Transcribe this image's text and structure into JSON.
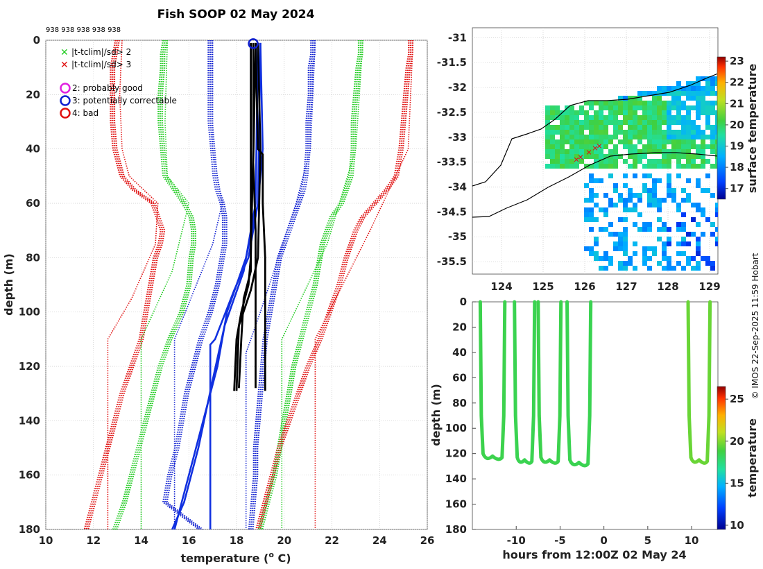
{
  "title": "Fish SOOP 02 May 2024",
  "header_ids": "938 938 938 938 938",
  "credit": "© IMOS 22-Sep-2025 11:59 Hobart",
  "colors": {
    "xlim2": "#22cc22",
    "xlim3": "#e01010",
    "good": "#e020e0",
    "correctable": "#1020d0",
    "bad": "#e01010",
    "profile": "#000000",
    "profile_blue": "#1030e0"
  },
  "chart_data": [
    {
      "type": "line",
      "name": "profile",
      "xlabel": "temperature (o C)",
      "xlabel_main": "temperature (",
      "xlabel_sup": "o",
      "xlabel_end": " C)",
      "ylabel": "depth (m)",
      "xlim": [
        10,
        26
      ],
      "ylim": [
        0,
        180
      ],
      "xticks": [
        "10",
        "12",
        "14",
        "16",
        "18",
        "20",
        "22",
        "24",
        "26"
      ],
      "yticks": [
        "0",
        "20",
        "40",
        "60",
        "80",
        "100",
        "120",
        "140",
        "160",
        "180"
      ],
      "legend": [
        {
          "marker": "x",
          "color": "#22cc22",
          "label": "|t-tclim|/sd> 2"
        },
        {
          "marker": "x",
          "color": "#e01010",
          "label": "|t-tclim|/sd> 3"
        },
        {
          "marker": "o",
          "color": "#e020e0",
          "label": "2: probably good"
        },
        {
          "marker": "o",
          "color": "#1020d0",
          "label": "3: potentially correctable"
        },
        {
          "marker": "o",
          "color": "#e01010",
          "label": "4: bad"
        }
      ],
      "depths": [
        0,
        5,
        10,
        20,
        30,
        40,
        50,
        55,
        60,
        65,
        70,
        75,
        80,
        90,
        100,
        110,
        120,
        130,
        140,
        150,
        160,
        170,
        180
      ],
      "clim_series": [
        {
          "name": "red-left",
          "color": "#e01010",
          "values": [
            13.0,
            12.9,
            12.8,
            12.8,
            12.8,
            12.9,
            13.2,
            13.7,
            14.5,
            14.7,
            14.9,
            14.8,
            14.6,
            14.4,
            14.2,
            14.0,
            13.6,
            13.2,
            12.9,
            12.6,
            12.3,
            12.0,
            11.7
          ]
        },
        {
          "name": "green-left",
          "color": "#22cc22",
          "values": [
            15.0,
            14.9,
            14.9,
            14.8,
            14.8,
            14.9,
            15.0,
            15.4,
            15.8,
            16.1,
            16.2,
            16.2,
            16.1,
            16.0,
            15.7,
            15.2,
            14.8,
            14.5,
            14.2,
            13.9,
            13.6,
            13.3,
            12.9
          ]
        },
        {
          "name": "blue-left",
          "color": "#1020d0",
          "values": [
            16.9,
            16.9,
            16.9,
            16.9,
            16.9,
            17.0,
            17.1,
            17.2,
            17.4,
            17.5,
            17.5,
            17.5,
            17.4,
            17.2,
            16.9,
            16.5,
            16.2,
            15.9,
            15.7,
            15.5,
            15.2,
            15.0,
            16.5
          ]
        },
        {
          "name": "blue-right",
          "color": "#1020d0",
          "values": [
            21.2,
            21.2,
            21.1,
            21.1,
            21.0,
            21.0,
            20.9,
            20.8,
            20.6,
            20.4,
            20.2,
            20.0,
            19.8,
            19.6,
            19.4,
            19.2,
            19.1,
            19.0,
            18.9,
            18.8,
            18.8,
            18.7,
            18.6
          ]
        },
        {
          "name": "green-right",
          "color": "#22cc22",
          "values": [
            23.2,
            23.2,
            23.1,
            23.0,
            22.9,
            22.9,
            22.8,
            22.6,
            22.4,
            22.0,
            21.8,
            21.6,
            21.5,
            21.3,
            21.0,
            20.7,
            20.4,
            20.2,
            20.0,
            19.8,
            19.6,
            19.3,
            19.0
          ]
        },
        {
          "name": "red-right",
          "color": "#e01010",
          "values": [
            25.3,
            25.3,
            25.2,
            25.1,
            25.0,
            24.9,
            24.7,
            24.3,
            23.8,
            23.3,
            23.0,
            22.8,
            22.6,
            22.3,
            21.9,
            21.5,
            21.0,
            20.6,
            20.2,
            19.8,
            19.5,
            19.2,
            18.9
          ]
        }
      ],
      "thin_series": [
        {
          "name": "red-thin-left",
          "color": "#e01010",
          "points": [
            [
              13.2,
              0
            ],
            [
              13.1,
              20
            ],
            [
              13.2,
              40
            ],
            [
              13.5,
              50
            ],
            [
              14.7,
              60
            ],
            [
              14.6,
              75
            ],
            [
              13.6,
              95
            ],
            [
              12.6,
              110
            ],
            [
              12.6,
              180
            ]
          ]
        },
        {
          "name": "green-thin-left",
          "color": "#22cc22",
          "points": [
            [
              15.1,
              0
            ],
            [
              15.0,
              30
            ],
            [
              15.1,
              50
            ],
            [
              16.0,
              60
            ],
            [
              15.3,
              85
            ],
            [
              14.0,
              110
            ],
            [
              14.0,
              180
            ]
          ]
        },
        {
          "name": "blue-thin-left",
          "color": "#1020d0",
          "points": [
            [
              17.0,
              0
            ],
            [
              17.0,
              40
            ],
            [
              17.4,
              60
            ],
            [
              17.0,
              75
            ],
            [
              15.4,
              110
            ],
            [
              15.4,
              180
            ]
          ]
        },
        {
          "name": "blue-thin-right",
          "color": "#1020d0",
          "points": [
            [
              21.3,
              0
            ],
            [
              21.1,
              40
            ],
            [
              20.5,
              60
            ],
            [
              19.0,
              100
            ],
            [
              18.4,
              115
            ],
            [
              18.4,
              180
            ]
          ]
        },
        {
          "name": "green-thin-right",
          "color": "#22cc22",
          "points": [
            [
              23.3,
              0
            ],
            [
              23.0,
              40
            ],
            [
              21.8,
              75
            ],
            [
              19.9,
              110
            ],
            [
              19.9,
              180
            ]
          ]
        },
        {
          "name": "red-thin-right",
          "color": "#e01010",
          "points": [
            [
              25.4,
              0
            ],
            [
              25.2,
              40
            ],
            [
              23.6,
              70
            ],
            [
              21.3,
              110
            ],
            [
              21.3,
              180
            ]
          ]
        }
      ],
      "obs_black": [
        {
          "points": [
            [
              18.7,
              1
            ],
            [
              18.7,
              40
            ],
            [
              18.6,
              80
            ],
            [
              18.5,
              90
            ],
            [
              18.2,
              100
            ],
            [
              18.0,
              110
            ],
            [
              17.9,
              129
            ]
          ]
        },
        {
          "points": [
            [
              18.9,
              1
            ],
            [
              19.0,
              40
            ],
            [
              18.9,
              80
            ],
            [
              18.6,
              92
            ],
            [
              18.1,
              105
            ],
            [
              18.0,
              129
            ]
          ]
        },
        {
          "points": [
            [
              18.8,
              1
            ],
            [
              18.9,
              40
            ],
            [
              19.1,
              42
            ],
            [
              19.1,
              60
            ],
            [
              19.2,
              80
            ],
            [
              19.2,
              129
            ]
          ]
        },
        {
          "points": [
            [
              18.6,
              1
            ],
            [
              18.6,
              50
            ],
            [
              18.6,
              85
            ],
            [
              18.3,
              95
            ],
            [
              18.2,
              110
            ],
            [
              18.1,
              128
            ]
          ]
        },
        {
          "points": [
            [
              18.8,
              1
            ],
            [
              18.7,
              45
            ],
            [
              18.8,
              70
            ],
            [
              18.8,
              128
            ]
          ]
        }
      ],
      "obs_blue": [
        {
          "points": [
            [
              19.0,
              1
            ],
            [
              19.1,
              40
            ],
            [
              18.9,
              60
            ],
            [
              18.4,
              80
            ],
            [
              18.0,
              90
            ],
            [
              17.6,
              100
            ],
            [
              17.2,
              120
            ],
            [
              16.6,
              140
            ],
            [
              16.0,
              160
            ],
            [
              15.4,
              180
            ]
          ]
        },
        {
          "points": [
            [
              19.0,
              1
            ],
            [
              18.9,
              60
            ],
            [
              18.5,
              80
            ],
            [
              17.9,
              92
            ],
            [
              17.1,
              110
            ],
            [
              16.9,
              112
            ],
            [
              16.9,
              180
            ]
          ]
        },
        {
          "points": [
            [
              18.9,
              1
            ],
            [
              18.8,
              60
            ],
            [
              18.3,
              85
            ],
            [
              17.5,
              105
            ],
            [
              17.0,
              125
            ],
            [
              16.4,
              150
            ],
            [
              15.8,
              170
            ],
            [
              15.3,
              180
            ]
          ]
        }
      ],
      "flag_marker": {
        "x": 18.7,
        "y": 1,
        "type": "correctable"
      }
    },
    {
      "type": "heatmap",
      "name": "map",
      "xlim": [
        123.3,
        129.2
      ],
      "ylim": [
        -35.75,
        -30.8
      ],
      "xticks": [
        "124",
        "125",
        "126",
        "127",
        "128",
        "129"
      ],
      "yticks": [
        "-31",
        "-31.5",
        "-32",
        "-32.5",
        "-33",
        "-33.5",
        "-34",
        "-34.5",
        "-35",
        "-35.5"
      ],
      "colorbar": {
        "label": "surface temperature",
        "ticks": [
          "17",
          "18",
          "19",
          "20",
          "21",
          "22",
          "23"
        ],
        "range": [
          16.5,
          23.2
        ]
      },
      "track": [
        [
          125.8,
          -33.45
        ],
        [
          125.9,
          -33.4
        ],
        [
          126.1,
          -33.3
        ],
        [
          126.25,
          -33.22
        ],
        [
          126.35,
          -33.18
        ]
      ]
    },
    {
      "type": "line",
      "name": "timeseries",
      "xlabel": "hours from 12:00Z 02 May 24",
      "ylabel": "depth (m)",
      "xlim": [
        -15,
        13
      ],
      "ylim": [
        0,
        180
      ],
      "xticks": [
        "-10",
        "-5",
        "0",
        "5",
        "10"
      ],
      "yticks": [
        "0",
        "20",
        "40",
        "60",
        "80",
        "100",
        "120",
        "140",
        "160",
        "180"
      ],
      "colorbar": {
        "label": "temperature",
        "ticks": [
          "10",
          "15",
          "20",
          "25"
        ],
        "range": [
          9.5,
          26.5
        ]
      },
      "casts": [
        {
          "t0": -14.1,
          "t1": -11.3,
          "depth": 122,
          "temp": 18.5
        },
        {
          "t0": -10.2,
          "t1": -7.9,
          "depth": 125,
          "temp": 18.4
        },
        {
          "t0": -7.5,
          "t1": -4.9,
          "depth": 125,
          "temp": 18.5
        },
        {
          "t0": -4.2,
          "t1": -1.5,
          "depth": 127,
          "temp": 18.4
        },
        {
          "t0": 9.6,
          "t1": 12.1,
          "depth": 125,
          "temp": 19.5
        }
      ]
    }
  ]
}
